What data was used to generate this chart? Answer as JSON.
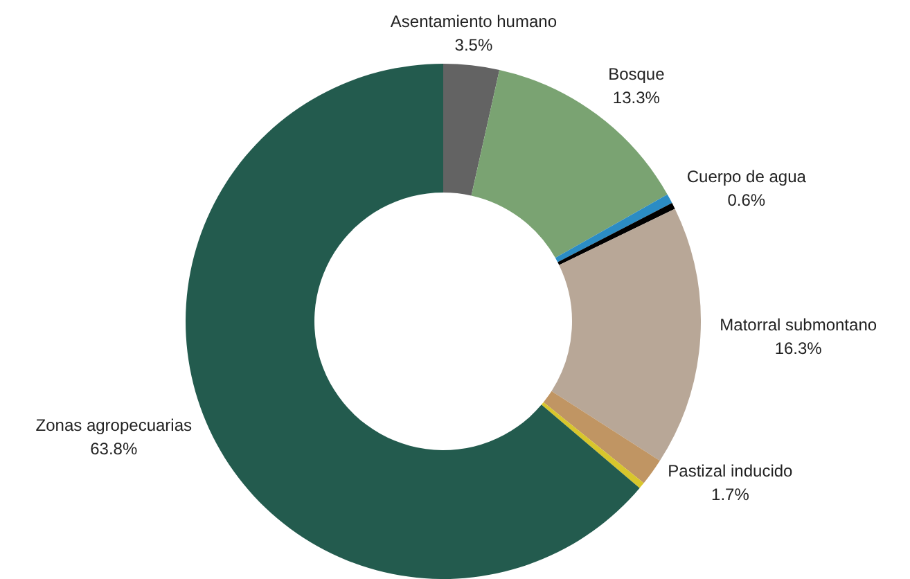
{
  "chart_data": {
    "type": "donut",
    "categories": [
      "Asentamiento humano",
      "Bosque",
      "Cuerpo de agua",
      null,
      "Matorral submontano",
      "Pastizal inducido",
      null,
      "Zonas agropecuarias"
    ],
    "values": [
      3.5,
      13.3,
      0.6,
      0.4,
      16.3,
      1.7,
      0.4,
      63.8
    ],
    "value_labels": [
      "3.5%",
      "13.3%",
      "0.6%",
      null,
      "16.3%",
      "1.7%",
      null,
      "63.8%"
    ],
    "colors": [
      "#636363",
      "#7aa372",
      "#2b8cc4",
      "#000000",
      "#b8a797",
      "#c09563",
      "#d8c62c",
      "#235b4e"
    ],
    "legend": false
  }
}
